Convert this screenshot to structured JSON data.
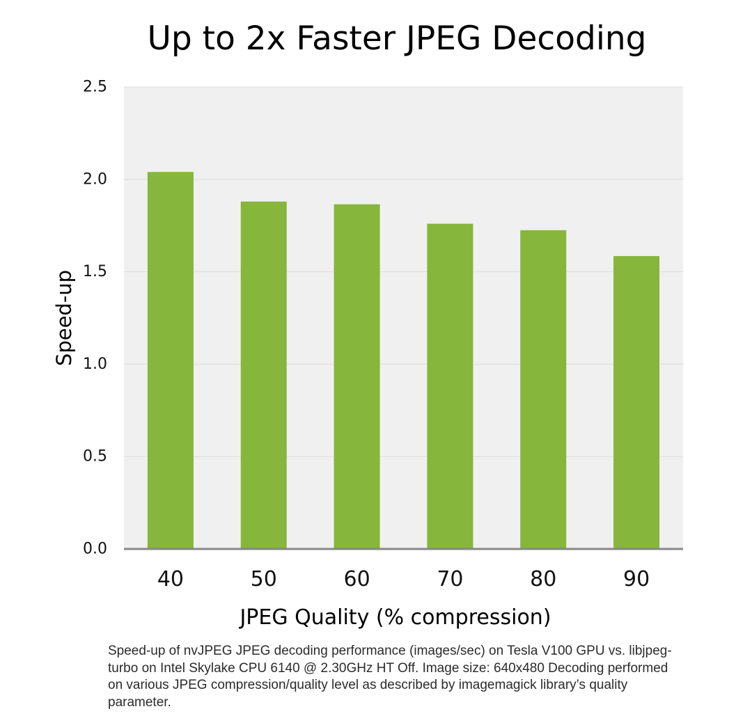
{
  "chart_data": {
    "type": "bar",
    "title": "Up to 2x Faster JPEG Decoding",
    "xlabel": "JPEG Quality (% compression)",
    "ylabel": "Speed-up",
    "categories": [
      "40",
      "50",
      "60",
      "70",
      "80",
      "90"
    ],
    "values": [
      2.04,
      1.88,
      1.865,
      1.76,
      1.725,
      1.585
    ],
    "ylim": [
      0,
      2.5
    ],
    "yticks": [
      "0.0",
      "0.5",
      "1.0",
      "1.5",
      "2.0",
      "2.5"
    ],
    "ytick_values": [
      0,
      0.5,
      1.0,
      1.5,
      2.0,
      2.5
    ],
    "grid": true,
    "legend": "none"
  },
  "colors": {
    "bar": "#86b63b",
    "plot_background": "#f0f0f0",
    "grid": "#dcdcdc",
    "axis": "#888888"
  },
  "caption": "Speed-up of nvJPEG JPEG decoding performance (images/sec) on Tesla V100 GPU vs. libjpeg-turbo on Intel Skylake CPU 6140 @ 2.30GHz HT Off. Image size: 640x480 Decoding performed on various JPEG compression/quality level as described by imagemagick library’s quality parameter."
}
